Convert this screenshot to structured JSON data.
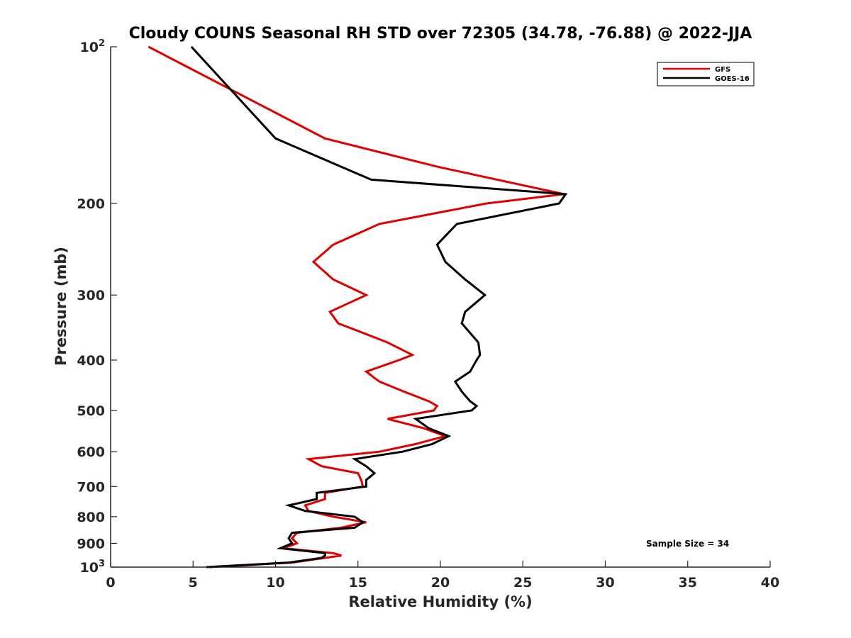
{
  "chart_data": {
    "type": "line",
    "title": "Cloudy COUNS Seasonal RH STD over 72305 (34.78, -76.88) @ 2022-JJA",
    "xlabel": "Relative Humidity (%)",
    "ylabel": "Pressure (mb)",
    "xlim": [
      0,
      40
    ],
    "ylim": [
      100,
      1000
    ],
    "yscale": "log",
    "y_reversed": true,
    "xticks": [
      0,
      5,
      10,
      15,
      20,
      25,
      30,
      35,
      40
    ],
    "xtick_labels": [
      "0",
      "5",
      "10",
      "15",
      "20",
      "25",
      "30",
      "35",
      "40"
    ],
    "yticks": [
      100,
      200,
      300,
      400,
      500,
      600,
      700,
      800,
      900,
      1000
    ],
    "ytick_labels": [
      {
        "base": "10",
        "exp": "2"
      },
      {
        "base": "200"
      },
      {
        "base": "300"
      },
      {
        "base": "400"
      },
      {
        "base": "500"
      },
      {
        "base": "600"
      },
      {
        "base": "700"
      },
      {
        "base": "800"
      },
      {
        "base": "900"
      },
      {
        "base": "10",
        "exp": "3"
      }
    ],
    "legend_position": "top-right",
    "annotation": "Sample Size = 34",
    "series": [
      {
        "name": "GFS",
        "color": "#e00000",
        "points": [
          [
            2.3,
            100
          ],
          [
            13.0,
            150
          ],
          [
            19.8,
            170
          ],
          [
            27.5,
            192
          ],
          [
            22.8,
            200
          ],
          [
            16.3,
            219
          ],
          [
            13.5,
            240
          ],
          [
            12.3,
            259
          ],
          [
            13.5,
            280
          ],
          [
            15.5,
            300
          ],
          [
            13.3,
            323
          ],
          [
            13.8,
            340
          ],
          [
            16.8,
            370
          ],
          [
            18.3,
            391
          ],
          [
            17.5,
            400
          ],
          [
            15.5,
            421
          ],
          [
            16.3,
            440
          ],
          [
            17.8,
            460
          ],
          [
            19.3,
            480
          ],
          [
            19.8,
            490
          ],
          [
            19.6,
            500
          ],
          [
            16.8,
            519
          ],
          [
            19.0,
            541
          ],
          [
            20.3,
            560
          ],
          [
            18.5,
            580
          ],
          [
            16.3,
            600
          ],
          [
            12.0,
            620
          ],
          [
            12.8,
            640
          ],
          [
            15.0,
            660
          ],
          [
            15.2,
            680
          ],
          [
            15.3,
            700
          ],
          [
            13.0,
            720
          ],
          [
            13.0,
            740
          ],
          [
            11.8,
            761
          ],
          [
            12.0,
            780
          ],
          [
            13.5,
            800
          ],
          [
            15.5,
            820
          ],
          [
            14.0,
            840
          ],
          [
            11.3,
            859
          ],
          [
            11.0,
            880
          ],
          [
            11.3,
            900
          ],
          [
            10.5,
            920
          ],
          [
            13.5,
            940
          ],
          [
            14.0,
            950
          ],
          [
            13.0,
            960
          ],
          [
            11.0,
            980
          ],
          [
            6.0,
            1000
          ]
        ]
      },
      {
        "name": "GOES-16",
        "color": "#000000",
        "points": [
          [
            4.9,
            100
          ],
          [
            10.0,
            150
          ],
          [
            15.8,
            180
          ],
          [
            27.6,
            192
          ],
          [
            27.2,
            200
          ],
          [
            21.0,
            219
          ],
          [
            19.8,
            240
          ],
          [
            20.3,
            259
          ],
          [
            21.5,
            280
          ],
          [
            22.7,
            300
          ],
          [
            21.5,
            323
          ],
          [
            21.3,
            340
          ],
          [
            22.3,
            370
          ],
          [
            22.4,
            391
          ],
          [
            22.2,
            400
          ],
          [
            21.8,
            421
          ],
          [
            20.9,
            440
          ],
          [
            21.3,
            460
          ],
          [
            21.8,
            480
          ],
          [
            22.2,
            490
          ],
          [
            21.9,
            500
          ],
          [
            18.5,
            519
          ],
          [
            19.3,
            541
          ],
          [
            20.5,
            560
          ],
          [
            19.5,
            580
          ],
          [
            17.7,
            600
          ],
          [
            14.8,
            620
          ],
          [
            15.5,
            640
          ],
          [
            16.0,
            660
          ],
          [
            15.5,
            680
          ],
          [
            15.5,
            700
          ],
          [
            12.5,
            720
          ],
          [
            12.5,
            740
          ],
          [
            10.8,
            761
          ],
          [
            11.8,
            780
          ],
          [
            14.8,
            800
          ],
          [
            15.3,
            820
          ],
          [
            14.8,
            840
          ],
          [
            11.0,
            859
          ],
          [
            10.8,
            880
          ],
          [
            11.0,
            900
          ],
          [
            10.3,
            920
          ],
          [
            13.0,
            940
          ],
          [
            13.0,
            950
          ],
          [
            12.8,
            960
          ],
          [
            10.8,
            980
          ],
          [
            5.8,
            1000
          ]
        ]
      }
    ]
  }
}
